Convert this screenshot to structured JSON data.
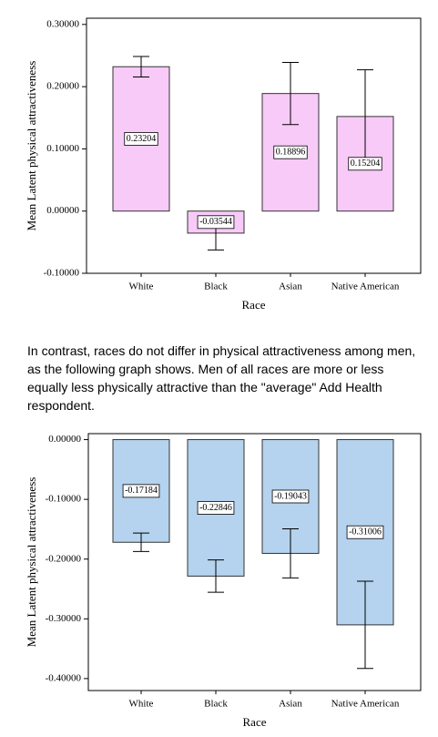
{
  "chart_data": [
    {
      "type": "bar",
      "y_label": "Mean Latent physical attractiveness",
      "x_label": "Race",
      "categories": [
        "White",
        "Black",
        "Asian",
        "Native American"
      ],
      "values": [
        0.23204,
        -0.03544,
        0.18896,
        0.15204
      ],
      "errors": [
        0.0165,
        0.027,
        0.05,
        0.075
      ],
      "color": "#f8caf8",
      "ylim": [
        -0.1,
        0.31
      ],
      "yticks": [
        {
          "value": -0.1,
          "label": "-0.10000"
        },
        {
          "value": 0,
          "label": "0.00000"
        },
        {
          "value": 0.1,
          "label": "0.10000"
        },
        {
          "value": 0.2,
          "label": "0.20000"
        },
        {
          "value": 0.3,
          "label": "0.30000"
        }
      ]
    },
    {
      "type": "bar",
      "y_label": "Mean Latent physical attractiveness",
      "x_label": "Race",
      "categories": [
        "White",
        "Black",
        "Asian",
        "Native American"
      ],
      "values": [
        -0.17184,
        -0.22846,
        -0.19043,
        -0.31006
      ],
      "errors": [
        0.0155,
        0.027,
        0.041,
        0.073
      ],
      "color": "#b5d3ee",
      "ylim": [
        -0.42,
        0.01
      ],
      "yticks": [
        {
          "value": -0.4,
          "label": "-0.40000"
        },
        {
          "value": -0.3,
          "label": "-0.30000"
        },
        {
          "value": -0.2,
          "label": "-0.20000"
        },
        {
          "value": -0.1,
          "label": "-0.10000"
        },
        {
          "value": 0,
          "label": "0.00000"
        }
      ]
    }
  ],
  "paragraph": "In contrast, races do not differ in physical attractiveness among men, as the following graph shows.  Men of all races are more or less equally less physically attractive than the \"average\" Add Health respondent."
}
